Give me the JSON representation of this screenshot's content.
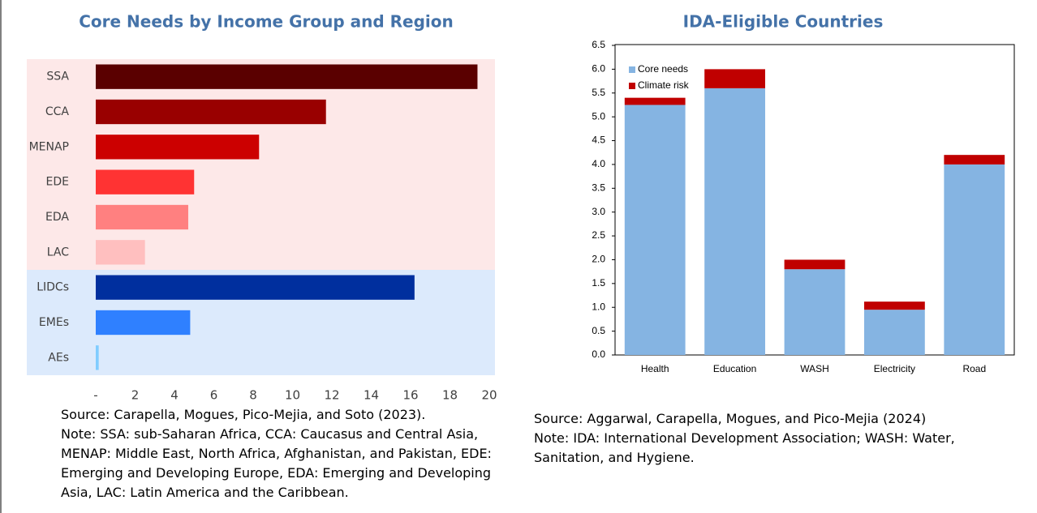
{
  "chart_data": [
    {
      "type": "barh",
      "title": "Core Needs by Income Group and Region",
      "categories": [
        "SSA",
        "CCA",
        "MENAP",
        "EDE",
        "EDA",
        "LAC",
        "LIDCs",
        "EMEs",
        "AEs"
      ],
      "values": [
        19.4,
        11.7,
        8.3,
        5.0,
        4.7,
        2.5,
        16.2,
        4.8,
        0.15
      ],
      "colors": [
        "#5a0000",
        "#990000",
        "#cc0000",
        "#ff3333",
        "#ff8080",
        "#ffbfbf",
        "#002f9e",
        "#2f80ff",
        "#80ccff"
      ],
      "xlim": [
        0,
        20
      ],
      "xticks": [
        {
          "value": 0,
          "label": "-"
        },
        2,
        4,
        6,
        8,
        10,
        12,
        14,
        16,
        18,
        20
      ],
      "source": "Source: Carapella, Mogues, Pico-Mejia, and Soto (2023).",
      "note": "Note: SSA: sub-Saharan Africa, CCA: Caucasus and Central Asia, MENAP: Middle East, North Africa, Afghanistan, and Pakistan, EDE: Emerging and Developing Europe, EDA: Emerging and Developing Asia, LAC: Latin America and the Caribbean."
    },
    {
      "type": "stacked",
      "title": "IDA-Eligible Countries",
      "categories": [
        "Health",
        "Education",
        "WASH",
        "Electricity",
        "Road"
      ],
      "series": [
        {
          "name": "Core needs",
          "color": "#85b4e2",
          "values": [
            5.25,
            5.6,
            1.8,
            0.95,
            4.0
          ]
        },
        {
          "name": "Climate risk",
          "color": "#c00000",
          "values": [
            0.15,
            0.4,
            0.2,
            0.17,
            0.2
          ]
        }
      ],
      "ylim": [
        0,
        6.5
      ],
      "yticks": [
        {
          "value": 0,
          "label": "0.0"
        },
        0.5,
        {
          "value": 1,
          "label": "1.0"
        },
        1.5,
        {
          "value": 2,
          "label": "2.0"
        },
        2.5,
        {
          "value": 3,
          "label": "3.0"
        },
        3.5,
        {
          "value": 4,
          "label": "4.0"
        },
        4.5,
        {
          "value": 5,
          "label": "5.0"
        },
        5.5,
        {
          "value": 6,
          "label": "6.0"
        },
        6.5
      ],
      "legend": "upper-left",
      "source": "Source: Aggarwal, Carapella, Mogues, and Pico-Mejia (2024)",
      "note": "Note: IDA: International Development Association; WASH: Water, Sanitation, and Hygiene."
    }
  ]
}
